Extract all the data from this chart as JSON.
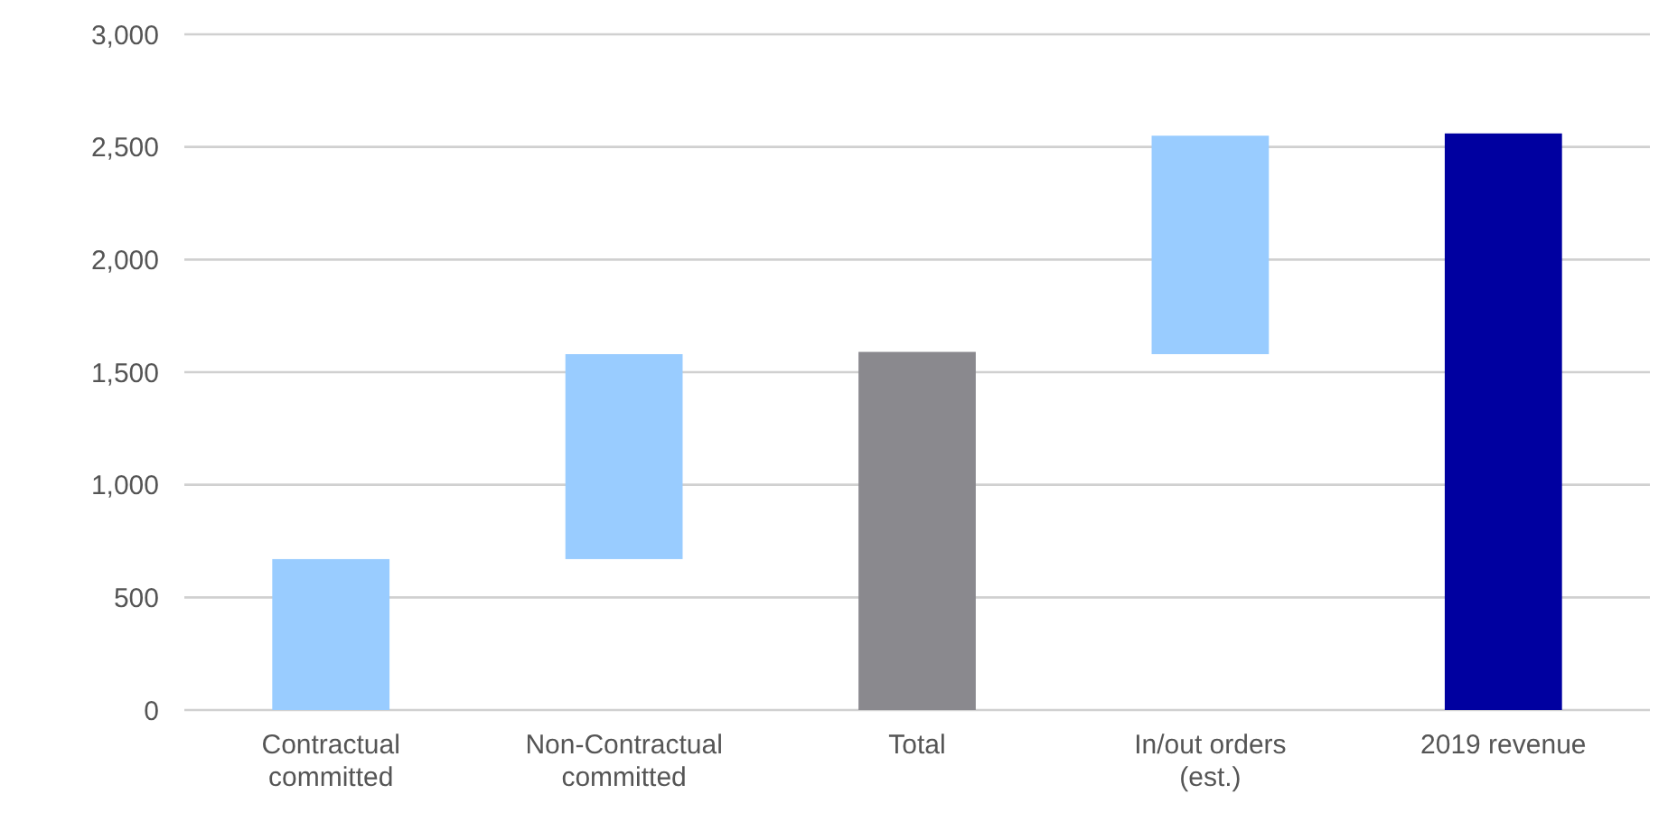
{
  "chart_data": {
    "type": "bar",
    "categories": [
      "Contractual committed",
      "Non-Contractual committed",
      "Total",
      "In/out orders (est.)",
      "2019 revenue"
    ],
    "values": [
      670,
      910,
      1590,
      970,
      2560
    ],
    "base": [
      0,
      670,
      0,
      1580,
      0
    ],
    "colors": [
      "#99ccff",
      "#99ccff",
      "#8a898e",
      "#99ccff",
      "#0000a0"
    ],
    "ylim": [
      0,
      3000
    ],
    "yticks": [
      {
        "value": 0,
        "label": "0"
      },
      {
        "value": 500,
        "label": "500"
      },
      {
        "value": 1000,
        "label": "1,000"
      },
      {
        "value": 1500,
        "label": "1,500"
      },
      {
        "value": 2000,
        "label": "2,000"
      },
      {
        "value": 2500,
        "label": "2,500"
      },
      {
        "value": 3000,
        "label": "3,000"
      }
    ],
    "grid": "y"
  }
}
